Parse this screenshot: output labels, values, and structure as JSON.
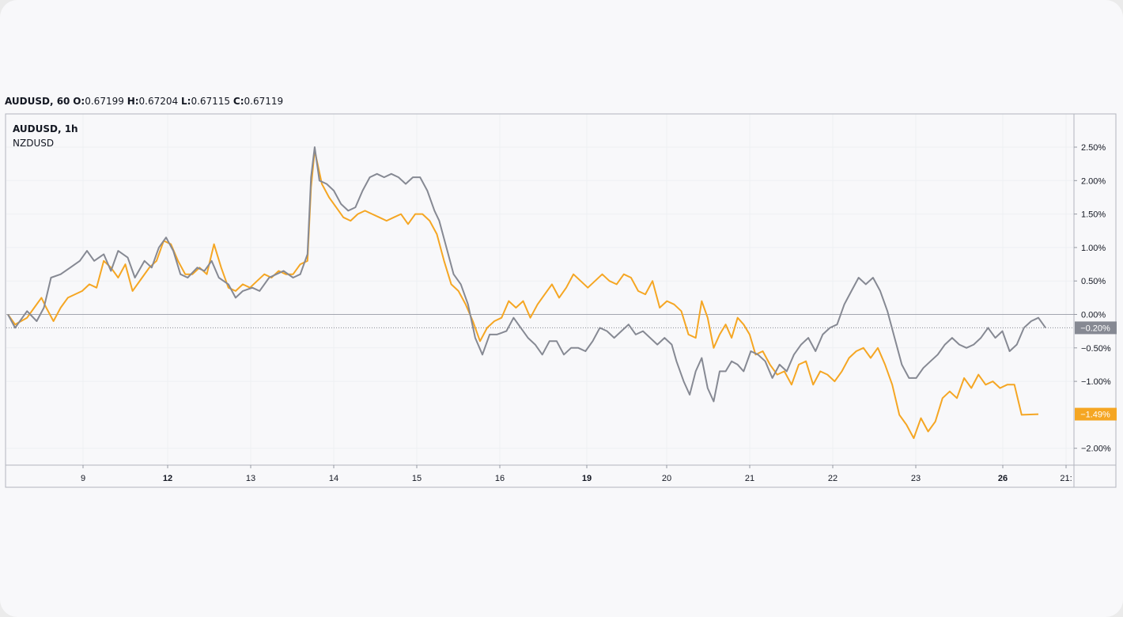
{
  "header": {
    "symbol": "AUDUSD, 60",
    "open_label": "O:",
    "open": "0.67199",
    "high_label": "H:",
    "high": "0.67204",
    "low_label": "L:",
    "low": "0.67115",
    "close_label": "C:",
    "close": "0.67119"
  },
  "legend": {
    "main": "AUDUSD, 1h",
    "compare": "NZDUSD"
  },
  "colors": {
    "audusd": "#868993",
    "nzdusd": "#f5a623",
    "grid": "#eef0f3",
    "axis": "#9598a1"
  },
  "chart_data": {
    "type": "line",
    "yunit": "%",
    "ylim": [
      -2.25,
      2.95
    ],
    "yticks": [
      "2.50%",
      "2.00%",
      "1.50%",
      "1.00%",
      "0.50%",
      "0.00%",
      "-0.50%",
      "-1.00%",
      "-2.00%"
    ],
    "xticks": [
      "9",
      "12",
      "13",
      "14",
      "15",
      "16",
      "19",
      "20",
      "21",
      "22",
      "23",
      "26",
      "21:"
    ],
    "bold_xticks": [
      "12",
      "19",
      "26"
    ],
    "grid": true,
    "last_values": {
      "AUDUSD": "-0.20%",
      "NZDUSD": "-1.49%"
    },
    "series": [
      {
        "name": "AUDUSD",
        "values": [
          [
            0,
            0
          ],
          [
            0.3,
            -0.2
          ],
          [
            0.8,
            0.05
          ],
          [
            1.2,
            -0.1
          ],
          [
            1.5,
            0.1
          ],
          [
            1.8,
            0.55
          ],
          [
            2.2,
            0.6
          ],
          [
            2.6,
            0.7
          ],
          [
            3,
            0.8
          ],
          [
            3.3,
            0.95
          ],
          [
            3.6,
            0.8
          ],
          [
            4,
            0.9
          ],
          [
            4.3,
            0.65
          ],
          [
            4.6,
            0.95
          ],
          [
            5,
            0.85
          ],
          [
            5.3,
            0.55
          ],
          [
            5.7,
            0.8
          ],
          [
            6,
            0.7
          ],
          [
            6.3,
            1.0
          ],
          [
            6.6,
            1.15
          ],
          [
            6.9,
            0.95
          ],
          [
            7.2,
            0.6
          ],
          [
            7.5,
            0.55
          ],
          [
            7.9,
            0.7
          ],
          [
            8.2,
            0.65
          ],
          [
            8.5,
            0.8
          ],
          [
            8.8,
            0.55
          ],
          [
            9.2,
            0.45
          ],
          [
            9.5,
            0.25
          ],
          [
            9.8,
            0.35
          ],
          [
            10.2,
            0.4
          ],
          [
            10.5,
            0.35
          ],
          [
            10.9,
            0.55
          ],
          [
            11.2,
            0.6
          ],
          [
            11.5,
            0.65
          ],
          [
            11.9,
            0.55
          ],
          [
            12.2,
            0.6
          ],
          [
            12.5,
            0.9
          ],
          [
            12.65,
            2.05
          ],
          [
            12.8,
            2.5
          ],
          [
            13,
            2.0
          ],
          [
            13.3,
            1.95
          ],
          [
            13.6,
            1.85
          ],
          [
            13.9,
            1.65
          ],
          [
            14.2,
            1.55
          ],
          [
            14.5,
            1.6
          ],
          [
            14.8,
            1.85
          ],
          [
            15.1,
            2.05
          ],
          [
            15.4,
            2.1
          ],
          [
            15.7,
            2.05
          ],
          [
            16,
            2.1
          ],
          [
            16.3,
            2.05
          ],
          [
            16.6,
            1.95
          ],
          [
            16.9,
            2.05
          ],
          [
            17.2,
            2.05
          ],
          [
            17.5,
            1.85
          ],
          [
            17.8,
            1.55
          ],
          [
            18,
            1.4
          ],
          [
            18.3,
            1.0
          ],
          [
            18.6,
            0.6
          ],
          [
            18.9,
            0.45
          ],
          [
            19.2,
            0.15
          ],
          [
            19.5,
            -0.35
          ],
          [
            19.8,
            -0.6
          ],
          [
            20.1,
            -0.3
          ],
          [
            20.4,
            -0.3
          ],
          [
            20.8,
            -0.25
          ],
          [
            21.1,
            -0.05
          ],
          [
            21.4,
            -0.2
          ],
          [
            21.7,
            -0.35
          ],
          [
            22,
            -0.45
          ],
          [
            22.3,
            -0.6
          ],
          [
            22.6,
            -0.4
          ],
          [
            22.9,
            -0.4
          ],
          [
            23.2,
            -0.6
          ],
          [
            23.5,
            -0.5
          ],
          [
            23.8,
            -0.5
          ],
          [
            24.1,
            -0.55
          ],
          [
            24.4,
            -0.4
          ],
          [
            24.7,
            -0.2
          ],
          [
            25,
            -0.25
          ],
          [
            25.3,
            -0.35
          ],
          [
            25.6,
            -0.25
          ],
          [
            25.9,
            -0.15
          ],
          [
            26.2,
            -0.3
          ],
          [
            26.5,
            -0.25
          ],
          [
            26.8,
            -0.35
          ],
          [
            27.1,
            -0.45
          ],
          [
            27.4,
            -0.35
          ],
          [
            27.7,
            -0.45
          ],
          [
            27.9,
            -0.7
          ],
          [
            28.2,
            -1.0
          ],
          [
            28.45,
            -1.2
          ],
          [
            28.7,
            -0.85
          ],
          [
            28.95,
            -0.65
          ],
          [
            29.2,
            -1.1
          ],
          [
            29.45,
            -1.3
          ],
          [
            29.7,
            -0.85
          ],
          [
            29.95,
            -0.85
          ],
          [
            30.2,
            -0.7
          ],
          [
            30.45,
            -0.75
          ],
          [
            30.7,
            -0.85
          ],
          [
            31,
            -0.55
          ],
          [
            31.3,
            -0.6
          ],
          [
            31.6,
            -0.7
          ],
          [
            31.9,
            -0.95
          ],
          [
            32.2,
            -0.75
          ],
          [
            32.5,
            -0.85
          ],
          [
            32.8,
            -0.6
          ],
          [
            33.1,
            -0.45
          ],
          [
            33.4,
            -0.35
          ],
          [
            33.7,
            -0.55
          ],
          [
            34,
            -0.3
          ],
          [
            34.3,
            -0.2
          ],
          [
            34.6,
            -0.15
          ],
          [
            34.9,
            0.15
          ],
          [
            35.2,
            0.35
          ],
          [
            35.5,
            0.55
          ],
          [
            35.8,
            0.45
          ],
          [
            36.1,
            0.55
          ],
          [
            36.4,
            0.35
          ],
          [
            36.7,
            0.05
          ],
          [
            37,
            -0.35
          ],
          [
            37.3,
            -0.75
          ],
          [
            37.6,
            -0.95
          ],
          [
            37.9,
            -0.95
          ],
          [
            38.2,
            -0.8
          ],
          [
            38.5,
            -0.7
          ],
          [
            38.8,
            -0.6
          ],
          [
            39.1,
            -0.45
          ],
          [
            39.4,
            -0.35
          ],
          [
            39.7,
            -0.45
          ],
          [
            40,
            -0.5
          ],
          [
            40.3,
            -0.45
          ],
          [
            40.6,
            -0.35
          ],
          [
            40.9,
            -0.2
          ],
          [
            41.2,
            -0.35
          ],
          [
            41.5,
            -0.25
          ],
          [
            41.8,
            -0.55
          ],
          [
            42.1,
            -0.45
          ],
          [
            42.4,
            -0.2
          ],
          [
            42.7,
            -0.1
          ],
          [
            43,
            -0.05
          ],
          [
            43.3,
            -0.2
          ]
        ]
      },
      {
        "name": "NZDUSD",
        "values": [
          [
            0,
            0
          ],
          [
            0.3,
            -0.15
          ],
          [
            0.8,
            -0.05
          ],
          [
            1.1,
            0.1
          ],
          [
            1.4,
            0.25
          ],
          [
            1.6,
            0.1
          ],
          [
            1.9,
            -0.1
          ],
          [
            2.2,
            0.1
          ],
          [
            2.5,
            0.25
          ],
          [
            2.8,
            0.3
          ],
          [
            3.1,
            0.35
          ],
          [
            3.4,
            0.45
          ],
          [
            3.7,
            0.4
          ],
          [
            4,
            0.8
          ],
          [
            4.3,
            0.7
          ],
          [
            4.6,
            0.55
          ],
          [
            4.9,
            0.75
          ],
          [
            5.2,
            0.35
          ],
          [
            5.6,
            0.55
          ],
          [
            5.9,
            0.7
          ],
          [
            6.2,
            0.8
          ],
          [
            6.5,
            1.1
          ],
          [
            6.8,
            1.05
          ],
          [
            7.1,
            0.8
          ],
          [
            7.4,
            0.6
          ],
          [
            7.7,
            0.6
          ],
          [
            8,
            0.7
          ],
          [
            8.3,
            0.6
          ],
          [
            8.6,
            1.05
          ],
          [
            8.9,
            0.7
          ],
          [
            9.2,
            0.4
          ],
          [
            9.5,
            0.35
          ],
          [
            9.8,
            0.45
          ],
          [
            10.1,
            0.4
          ],
          [
            10.4,
            0.5
          ],
          [
            10.7,
            0.6
          ],
          [
            11,
            0.55
          ],
          [
            11.3,
            0.65
          ],
          [
            11.6,
            0.6
          ],
          [
            11.9,
            0.6
          ],
          [
            12.2,
            0.75
          ],
          [
            12.5,
            0.8
          ],
          [
            12.65,
            1.9
          ],
          [
            12.8,
            2.45
          ],
          [
            13.1,
            1.95
          ],
          [
            13.4,
            1.75
          ],
          [
            13.7,
            1.6
          ],
          [
            14,
            1.45
          ],
          [
            14.3,
            1.4
          ],
          [
            14.6,
            1.5
          ],
          [
            14.9,
            1.55
          ],
          [
            15.2,
            1.5
          ],
          [
            15.5,
            1.45
          ],
          [
            15.8,
            1.4
          ],
          [
            16.1,
            1.45
          ],
          [
            16.4,
            1.5
          ],
          [
            16.7,
            1.35
          ],
          [
            17,
            1.5
          ],
          [
            17.3,
            1.5
          ],
          [
            17.6,
            1.4
          ],
          [
            17.9,
            1.2
          ],
          [
            18.2,
            0.8
          ],
          [
            18.5,
            0.45
          ],
          [
            18.8,
            0.35
          ],
          [
            19.1,
            0.15
          ],
          [
            19.4,
            -0.1
          ],
          [
            19.7,
            -0.4
          ],
          [
            20,
            -0.2
          ],
          [
            20.3,
            -0.1
          ],
          [
            20.6,
            -0.05
          ],
          [
            20.9,
            0.2
          ],
          [
            21.2,
            0.1
          ],
          [
            21.5,
            0.2
          ],
          [
            21.8,
            -0.05
          ],
          [
            22.1,
            0.15
          ],
          [
            22.4,
            0.3
          ],
          [
            22.7,
            0.45
          ],
          [
            23,
            0.25
          ],
          [
            23.3,
            0.4
          ],
          [
            23.6,
            0.6
          ],
          [
            23.9,
            0.5
          ],
          [
            24.2,
            0.4
          ],
          [
            24.5,
            0.5
          ],
          [
            24.8,
            0.6
          ],
          [
            25.1,
            0.5
          ],
          [
            25.4,
            0.45
          ],
          [
            25.7,
            0.6
          ],
          [
            26,
            0.55
          ],
          [
            26.3,
            0.35
          ],
          [
            26.6,
            0.3
          ],
          [
            26.9,
            0.5
          ],
          [
            27.2,
            0.1
          ],
          [
            27.5,
            0.2
          ],
          [
            27.8,
            0.15
          ],
          [
            28.1,
            0.05
          ],
          [
            28.4,
            -0.3
          ],
          [
            28.7,
            -0.35
          ],
          [
            28.95,
            0.2
          ],
          [
            29.2,
            -0.05
          ],
          [
            29.45,
            -0.5
          ],
          [
            29.7,
            -0.3
          ],
          [
            29.95,
            -0.15
          ],
          [
            30.2,
            -0.35
          ],
          [
            30.45,
            -0.05
          ],
          [
            30.7,
            -0.15
          ],
          [
            30.95,
            -0.3
          ],
          [
            31.2,
            -0.6
          ],
          [
            31.5,
            -0.55
          ],
          [
            31.8,
            -0.75
          ],
          [
            32.1,
            -0.9
          ],
          [
            32.4,
            -0.85
          ],
          [
            32.7,
            -1.05
          ],
          [
            33,
            -0.75
          ],
          [
            33.3,
            -0.7
          ],
          [
            33.6,
            -1.05
          ],
          [
            33.9,
            -0.85
          ],
          [
            34.2,
            -0.9
          ],
          [
            34.5,
            -1.0
          ],
          [
            34.8,
            -0.85
          ],
          [
            35.1,
            -0.65
          ],
          [
            35.4,
            -0.55
          ],
          [
            35.7,
            -0.5
          ],
          [
            36,
            -0.65
          ],
          [
            36.3,
            -0.5
          ],
          [
            36.6,
            -0.75
          ],
          [
            36.9,
            -1.05
          ],
          [
            37.2,
            -1.5
          ],
          [
            37.5,
            -1.65
          ],
          [
            37.8,
            -1.85
          ],
          [
            38.1,
            -1.55
          ],
          [
            38.4,
            -1.75
          ],
          [
            38.7,
            -1.6
          ],
          [
            39,
            -1.25
          ],
          [
            39.3,
            -1.15
          ],
          [
            39.6,
            -1.25
          ],
          [
            39.9,
            -0.95
          ],
          [
            40.2,
            -1.1
          ],
          [
            40.5,
            -0.9
          ],
          [
            40.8,
            -1.05
          ],
          [
            41.1,
            -1.0
          ],
          [
            41.4,
            -1.1
          ],
          [
            41.7,
            -1.05
          ],
          [
            42,
            -1.05
          ],
          [
            42.3,
            -1.5
          ],
          [
            43,
            -1.49
          ]
        ]
      }
    ]
  }
}
